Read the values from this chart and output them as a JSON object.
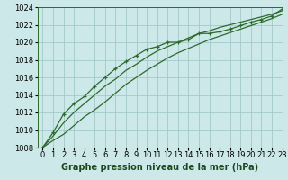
{
  "xlabel": "Graphe pression niveau de la mer (hPa)",
  "x_values": [
    0,
    1,
    2,
    3,
    4,
    5,
    6,
    7,
    8,
    9,
    10,
    11,
    12,
    13,
    14,
    15,
    16,
    17,
    18,
    19,
    20,
    21,
    22,
    23
  ],
  "line_bottom": [
    1008.0,
    1008.8,
    1009.5,
    1010.5,
    1011.5,
    1012.3,
    1013.2,
    1014.2,
    1015.2,
    1016.0,
    1016.8,
    1017.5,
    1018.2,
    1018.8,
    1019.3,
    1019.8,
    1020.3,
    1020.7,
    1021.1,
    1021.5,
    1021.9,
    1022.3,
    1022.7,
    1023.2
  ],
  "line_top": [
    1008.0,
    1009.3,
    1010.8,
    1012.0,
    1013.0,
    1014.0,
    1015.0,
    1015.8,
    1016.8,
    1017.5,
    1018.3,
    1019.0,
    1019.5,
    1020.0,
    1020.5,
    1021.0,
    1021.3,
    1021.7,
    1022.0,
    1022.3,
    1022.6,
    1022.9,
    1023.2,
    1023.6
  ],
  "line_markers": [
    1008.0,
    1009.7,
    1011.8,
    1013.0,
    1013.8,
    1015.0,
    1016.0,
    1017.0,
    1017.8,
    1018.5,
    1019.2,
    1019.5,
    1020.0,
    1020.0,
    1020.3,
    1021.0,
    1021.0,
    1021.2,
    1021.5,
    1021.9,
    1022.3,
    1022.6,
    1023.0,
    1023.8
  ],
  "ylim": [
    1008,
    1024
  ],
  "xlim": [
    -0.5,
    23
  ],
  "yticks": [
    1008,
    1010,
    1012,
    1014,
    1016,
    1018,
    1020,
    1022,
    1024
  ],
  "xticks": [
    0,
    1,
    2,
    3,
    4,
    5,
    6,
    7,
    8,
    9,
    10,
    11,
    12,
    13,
    14,
    15,
    16,
    17,
    18,
    19,
    20,
    21,
    22,
    23
  ],
  "line_color": "#2d6a2d",
  "marker_color": "#2d6a2d",
  "bg_color": "#cce8e8",
  "grid_color": "#9cc4c4",
  "xlabel_color": "#1a4a1a",
  "xlabel_fontsize": 7.0,
  "tick_fontsize": 6.0,
  "linewidth": 0.9
}
